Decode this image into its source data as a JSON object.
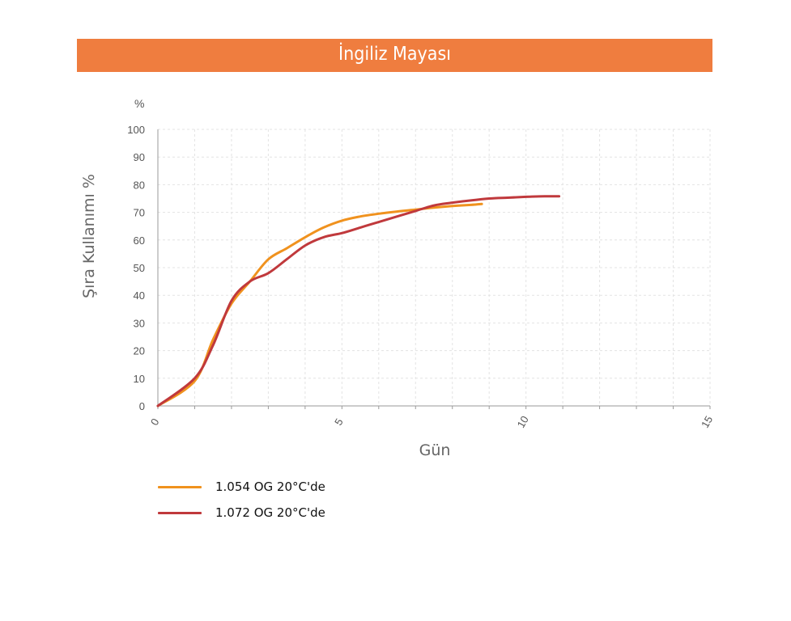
{
  "chart_data": {
    "type": "line",
    "title": "İngiliz Mayası",
    "xlabel": "Gün",
    "ylabel": "Şıra Kullanımı %",
    "y_unit_label": "%",
    "xlim": [
      0,
      15
    ],
    "ylim": [
      0,
      100
    ],
    "x_ticks": [
      0,
      5,
      10,
      15
    ],
    "y_ticks": [
      0,
      10,
      20,
      30,
      40,
      50,
      60,
      70,
      80,
      90,
      100
    ],
    "grid": true,
    "legend_position": "bottom-left",
    "series": [
      {
        "name": "1.054 OG 20°C'de",
        "color": "#f0921e",
        "x": [
          0,
          1,
          1.5,
          2,
          2.5,
          3,
          3.5,
          4,
          4.5,
          5,
          5.5,
          6,
          6.5,
          7,
          7.5,
          8,
          8.5,
          8.8
        ],
        "y": [
          0,
          9,
          24,
          37,
          45,
          53,
          57,
          61,
          64.5,
          67,
          68.5,
          69.5,
          70.3,
          71,
          71.7,
          72.3,
          72.7,
          73
        ]
      },
      {
        "name": "1.072 OG 20°C'de",
        "color": "#c0393c",
        "x": [
          0,
          1,
          1.5,
          2,
          2.5,
          3,
          3.5,
          4,
          4.5,
          5,
          5.5,
          6,
          6.5,
          7,
          7.5,
          8,
          8.5,
          9,
          9.5,
          10,
          10.5,
          10.9
        ],
        "y": [
          0,
          10,
          22,
          38,
          45,
          48,
          53,
          58,
          61,
          62.5,
          64.5,
          66.5,
          68.5,
          70.5,
          72.5,
          73.5,
          74.3,
          75,
          75.3,
          75.6,
          75.8,
          75.8
        ]
      }
    ]
  }
}
